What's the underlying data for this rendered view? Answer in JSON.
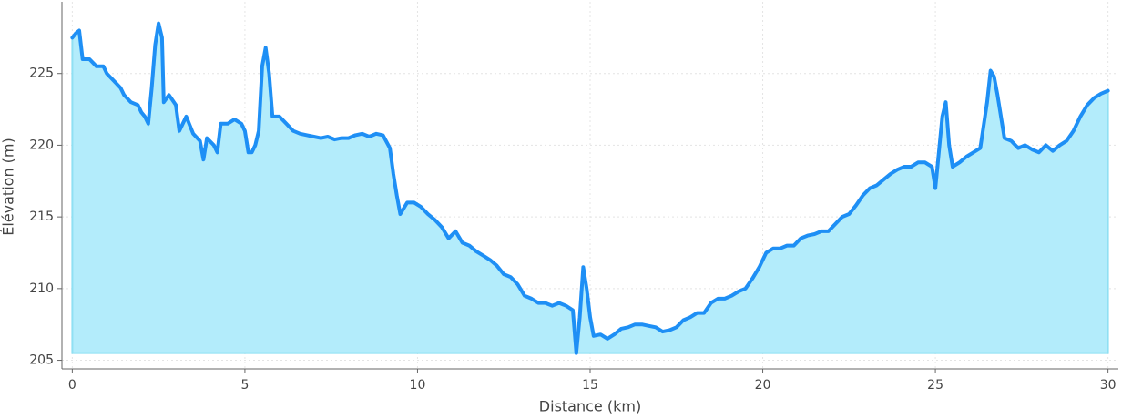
{
  "chart_data": {
    "type": "area",
    "xlabel": "Distance (km)",
    "ylabel": "Élévation (m)",
    "x": [
      0,
      0.1,
      0.2,
      0.3,
      0.5,
      0.7,
      0.9,
      1.0,
      1.2,
      1.4,
      1.5,
      1.7,
      1.9,
      2.0,
      2.1,
      2.2,
      2.3,
      2.4,
      2.5,
      2.6,
      2.65,
      2.8,
      3.0,
      3.1,
      3.3,
      3.5,
      3.7,
      3.8,
      3.9,
      4.1,
      4.2,
      4.3,
      4.5,
      4.7,
      4.9,
      5.0,
      5.1,
      5.2,
      5.3,
      5.4,
      5.5,
      5.6,
      5.7,
      5.8,
      6.0,
      6.2,
      6.4,
      6.6,
      6.8,
      7.0,
      7.2,
      7.4,
      7.6,
      7.8,
      8.0,
      8.2,
      8.4,
      8.6,
      8.8,
      9.0,
      9.2,
      9.3,
      9.4,
      9.5,
      9.7,
      9.9,
      10.1,
      10.3,
      10.5,
      10.7,
      10.9,
      11.1,
      11.3,
      11.5,
      11.7,
      11.9,
      12.1,
      12.3,
      12.5,
      12.7,
      12.9,
      13.1,
      13.3,
      13.5,
      13.7,
      13.9,
      14.1,
      14.3,
      14.5,
      14.6,
      14.7,
      14.8,
      14.9,
      15.0,
      15.1,
      15.3,
      15.5,
      15.7,
      15.9,
      16.1,
      16.3,
      16.5,
      16.7,
      16.9,
      17.1,
      17.3,
      17.5,
      17.7,
      17.9,
      18.1,
      18.3,
      18.5,
      18.7,
      18.9,
      19.1,
      19.3,
      19.5,
      19.7,
      19.9,
      20.1,
      20.3,
      20.5,
      20.7,
      20.9,
      21.1,
      21.3,
      21.5,
      21.7,
      21.9,
      22.1,
      22.3,
      22.5,
      22.7,
      22.9,
      23.1,
      23.3,
      23.5,
      23.7,
      23.9,
      24.1,
      24.3,
      24.5,
      24.7,
      24.9,
      25.0,
      25.1,
      25.2,
      25.3,
      25.4,
      25.5,
      25.7,
      25.9,
      26.1,
      26.3,
      26.5,
      26.6,
      26.7,
      26.8,
      26.9,
      27.0,
      27.2,
      27.4,
      27.6,
      27.8,
      28.0,
      28.2,
      28.4,
      28.6,
      28.8,
      29.0,
      29.2,
      29.4,
      29.6,
      29.8,
      30.0
    ],
    "series": [
      {
        "color": "#1e8ff5",
        "fill": "#b3ecfb",
        "values": [
          227.5,
          227.8,
          228,
          226,
          226,
          225.5,
          225.5,
          225,
          224.5,
          224,
          223.5,
          223,
          222.8,
          222.3,
          222,
          221.5,
          224,
          227,
          228.5,
          227.5,
          223,
          223.5,
          222.8,
          221,
          222,
          220.8,
          220.3,
          219,
          220.5,
          220,
          219.5,
          221.5,
          221.5,
          221.8,
          221.5,
          221,
          219.5,
          219.5,
          220,
          221,
          225.5,
          226.8,
          225,
          222,
          222,
          221.5,
          221,
          220.8,
          220.7,
          220.6,
          220.5,
          220.6,
          220.4,
          220.5,
          220.5,
          220.7,
          220.8,
          220.6,
          220.8,
          220.7,
          219.8,
          218,
          216.5,
          215.2,
          216,
          216,
          215.7,
          215.2,
          214.8,
          214.3,
          213.5,
          214,
          213.2,
          213,
          212.6,
          212.3,
          212,
          211.6,
          211,
          210.8,
          210.3,
          209.5,
          209.3,
          209,
          209,
          208.8,
          209,
          208.8,
          208.5,
          205.5,
          208,
          211.5,
          210,
          208,
          206.7,
          206.8,
          206.5,
          206.8,
          207.2,
          207.3,
          207.5,
          207.5,
          207.4,
          207.3,
          207,
          207.1,
          207.3,
          207.8,
          208,
          208.3,
          208.3,
          209,
          209.3,
          209.3,
          209.5,
          209.8,
          210,
          210.7,
          211.5,
          212.5,
          212.8,
          212.8,
          213,
          213,
          213.5,
          213.7,
          213.8,
          214,
          214,
          214.5,
          215,
          215.2,
          215.8,
          216.5,
          217,
          217.2,
          217.6,
          218,
          218.3,
          218.5,
          218.5,
          218.8,
          218.8,
          218.5,
          217,
          219.5,
          222,
          223,
          220,
          218.5,
          218.8,
          219.2,
          219.5,
          219.8,
          223,
          225.2,
          224.8,
          223.5,
          222,
          220.5,
          220.3,
          219.8,
          220,
          219.7,
          219.5,
          220,
          219.6,
          220,
          220.3,
          221,
          222,
          222.8,
          223.3,
          223.6,
          223.8
        ]
      }
    ],
    "xlim": [
      -0.3,
      30.3
    ],
    "ylim": [
      204.4,
      230
    ],
    "xticks": [
      0,
      5,
      10,
      15,
      20,
      25,
      30
    ],
    "yticks": [
      205,
      210,
      215,
      220,
      225
    ],
    "grid": true
  }
}
